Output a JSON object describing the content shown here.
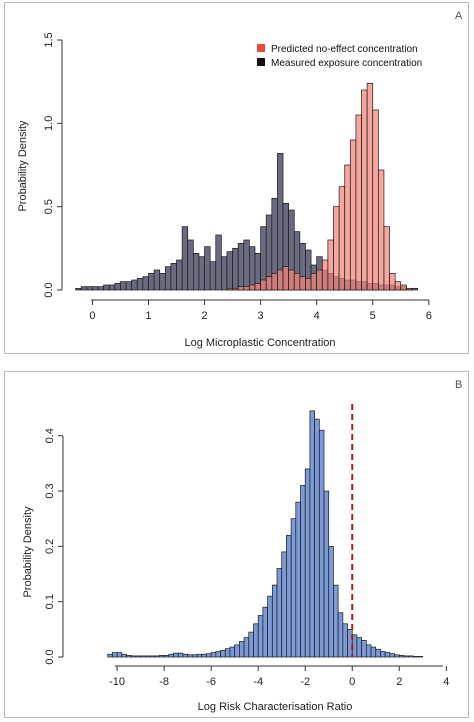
{
  "chart_data": [
    {
      "type": "bar",
      "panel_label": "A",
      "xlabel": "Log Microplastic Concentration",
      "ylabel": "Probability Density",
      "xlim": [
        -0.4,
        6.2
      ],
      "ylim": [
        0,
        1.5
      ],
      "xticks": [
        "0",
        "1",
        "2",
        "3",
        "4",
        "5",
        "6"
      ],
      "yticks": [
        "0.0",
        "0.5",
        "1.0",
        "1.5"
      ],
      "legend_position": "top-right",
      "bin_width": 0.1,
      "series": [
        {
          "name": "Measured exposure concentration",
          "color": "#6b6b80",
          "x": [
            -0.25,
            -0.15,
            -0.05,
            0.05,
            0.15,
            0.25,
            0.35,
            0.45,
            0.55,
            0.65,
            0.75,
            0.85,
            0.95,
            1.05,
            1.15,
            1.25,
            1.35,
            1.45,
            1.55,
            1.65,
            1.75,
            1.85,
            1.95,
            2.05,
            2.15,
            2.25,
            2.35,
            2.45,
            2.55,
            2.65,
            2.75,
            2.85,
            2.95,
            3.05,
            3.15,
            3.25,
            3.35,
            3.45,
            3.55,
            3.65,
            3.75,
            3.85,
            3.95,
            4.05,
            4.15,
            4.25,
            4.35,
            4.45,
            4.55,
            4.65,
            4.75,
            4.85,
            4.95,
            5.05,
            5.15,
            5.25,
            5.35,
            5.45,
            5.55,
            5.65,
            5.75
          ],
          "values": [
            0.01,
            0.02,
            0.02,
            0.02,
            0.02,
            0.03,
            0.03,
            0.04,
            0.05,
            0.05,
            0.06,
            0.07,
            0.08,
            0.1,
            0.12,
            0.1,
            0.14,
            0.16,
            0.18,
            0.38,
            0.3,
            0.22,
            0.2,
            0.26,
            0.17,
            0.33,
            0.2,
            0.23,
            0.25,
            0.28,
            0.3,
            0.26,
            0.22,
            0.38,
            0.45,
            0.55,
            0.82,
            0.52,
            0.48,
            0.35,
            0.28,
            0.24,
            0.15,
            0.2,
            0.12,
            0.1,
            0.08,
            0.07,
            0.06,
            0.06,
            0.05,
            0.05,
            0.04,
            0.04,
            0.03,
            0.03,
            0.03,
            0.02,
            0.02,
            0.01,
            0.01
          ]
        },
        {
          "name": "Predicted no-effect concentration",
          "color": "#f4837a",
          "x": [
            2.45,
            2.55,
            2.65,
            2.75,
            2.85,
            2.95,
            3.05,
            3.15,
            3.25,
            3.35,
            3.45,
            3.55,
            3.65,
            3.75,
            3.85,
            3.95,
            4.05,
            4.15,
            4.25,
            4.35,
            4.45,
            4.55,
            4.65,
            4.75,
            4.85,
            4.95,
            5.05,
            5.15,
            5.25,
            5.35,
            5.45,
            5.55,
            5.65
          ],
          "values": [
            0.01,
            0.01,
            0.02,
            0.02,
            0.03,
            0.04,
            0.06,
            0.08,
            0.1,
            0.12,
            0.14,
            0.12,
            0.1,
            0.08,
            0.07,
            0.1,
            0.12,
            0.18,
            0.3,
            0.5,
            0.62,
            0.75,
            0.9,
            1.05,
            1.2,
            1.24,
            1.08,
            0.72,
            0.38,
            0.1,
            0.05,
            0.03,
            0.01
          ]
        }
      ]
    },
    {
      "type": "bar",
      "panel_label": "B",
      "xlabel": "Log Risk Characterisation Ratio",
      "ylabel": "Probability Density",
      "xlim": [
        -10.6,
        4.2
      ],
      "ylim": [
        0,
        0.47
      ],
      "xticks": [
        "-10",
        "-8",
        "-6",
        "-4",
        "-2",
        "0",
        "2",
        "4"
      ],
      "yticks": [
        "0.0",
        "0.1",
        "0.2",
        "0.3",
        "0.4"
      ],
      "bin_width": 0.2,
      "reference_line_x": 0,
      "series": [
        {
          "color": "#7b9ad6",
          "x": [
            -10.3,
            -10.1,
            -9.9,
            -9.7,
            -9.5,
            -9.3,
            -9.1,
            -8.9,
            -8.7,
            -8.5,
            -8.3,
            -8.1,
            -7.9,
            -7.7,
            -7.5,
            -7.3,
            -7.1,
            -6.9,
            -6.7,
            -6.5,
            -6.3,
            -6.1,
            -5.9,
            -5.7,
            -5.5,
            -5.3,
            -5.1,
            -4.9,
            -4.7,
            -4.5,
            -4.3,
            -4.1,
            -3.9,
            -3.7,
            -3.5,
            -3.3,
            -3.1,
            -2.9,
            -2.7,
            -2.5,
            -2.3,
            -2.1,
            -1.9,
            -1.7,
            -1.5,
            -1.3,
            -1.1,
            -0.9,
            -0.7,
            -0.5,
            -0.3,
            -0.1,
            0.1,
            0.3,
            0.5,
            0.7,
            0.9,
            1.1,
            1.3,
            1.5,
            1.7,
            1.9,
            2.1,
            2.3,
            2.5,
            2.7,
            2.9
          ],
          "values": [
            0.005,
            0.008,
            0.008,
            0.005,
            0.003,
            0.002,
            0.002,
            0.002,
            0.002,
            0.002,
            0.002,
            0.003,
            0.003,
            0.005,
            0.007,
            0.007,
            0.005,
            0.004,
            0.004,
            0.005,
            0.005,
            0.006,
            0.008,
            0.01,
            0.012,
            0.015,
            0.018,
            0.022,
            0.028,
            0.035,
            0.045,
            0.06,
            0.075,
            0.09,
            0.11,
            0.13,
            0.16,
            0.19,
            0.22,
            0.25,
            0.28,
            0.31,
            0.34,
            0.445,
            0.43,
            0.41,
            0.3,
            0.2,
            0.13,
            0.08,
            0.06,
            0.05,
            0.04,
            0.035,
            0.03,
            0.022,
            0.018,
            0.014,
            0.01,
            0.008,
            0.006,
            0.004,
            0.003,
            0.002,
            0.002,
            0.001,
            0.001
          ]
        }
      ]
    }
  ]
}
